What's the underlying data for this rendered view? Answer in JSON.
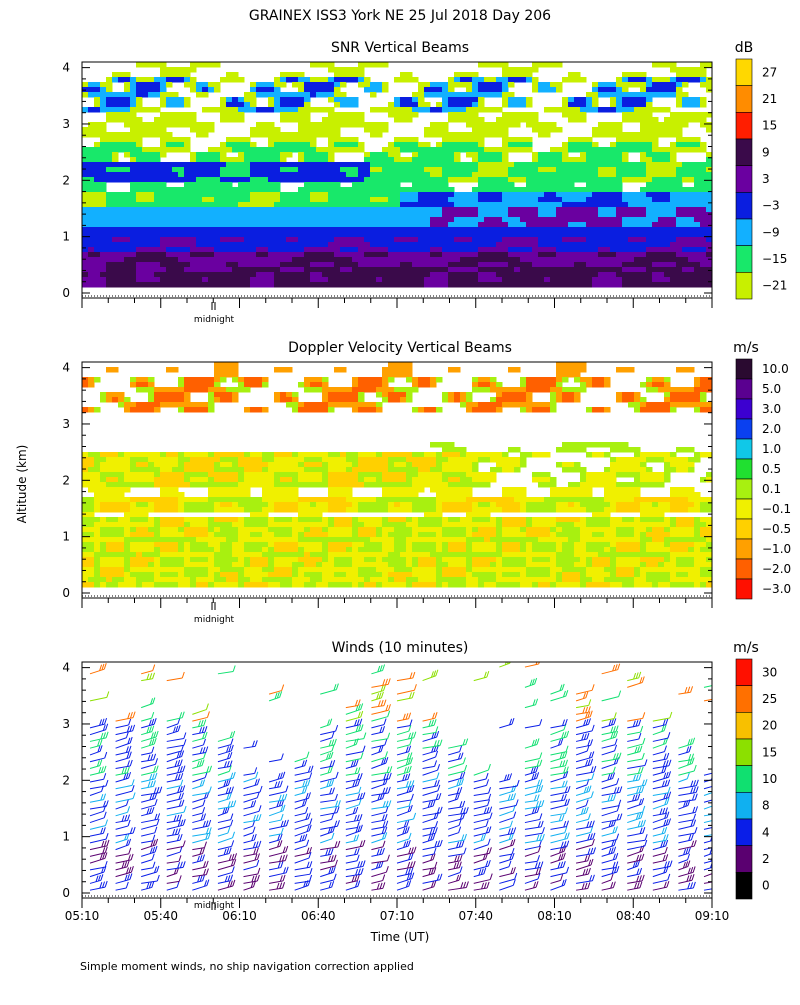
{
  "title": "GRAINEX ISS3 York NE  25 Jul 2018 Day 206",
  "ylabel": "Altitude (km)",
  "xlabel": "Time (UT)",
  "footnote": "Simple moment winds, no ship navigation correction applied",
  "midnight_label": "midnight",
  "chart_data": [
    {
      "type": "heatmap",
      "title": "SNR Vertical Beams",
      "unit": "dB",
      "ylim": [
        0,
        4
      ],
      "yticks": [
        "0",
        "1",
        "2",
        "3",
        "4"
      ],
      "colorbar": {
        "labels": [
          "27",
          "21",
          "15",
          "9",
          "3",
          "−3",
          "−9",
          "−15",
          "−21"
        ],
        "colors": [
          "#ffd800",
          "#ff8c00",
          "#ff1e00",
          "#3a0a4a",
          "#6a00a0",
          "#0a1ee0",
          "#12b0ff",
          "#18e86a",
          "#c8f000"
        ]
      }
    },
    {
      "type": "heatmap",
      "title": "Doppler Velocity Vertical Beams",
      "unit": "m/s",
      "ylim": [
        0,
        4
      ],
      "yticks": [
        "0",
        "1",
        "2",
        "3",
        "4"
      ],
      "colorbar": {
        "labels": [
          "10.0",
          "5.0",
          "3.0",
          "2.0",
          "1.0",
          "0.5",
          "0.1",
          "−0.1",
          "−0.5",
          "−1.0",
          "−2.0",
          "−3.0"
        ],
        "colors": [
          "#2a0a30",
          "#5a0090",
          "#3c00d0",
          "#0a40f0",
          "#10c8e8",
          "#20e030",
          "#a8f010",
          "#f0f000",
          "#ffd000",
          "#ffa000",
          "#ff6000",
          "#ff1000"
        ]
      }
    },
    {
      "type": "wind-barbs",
      "title": "Winds (10 minutes)",
      "unit": "m/s",
      "ylim": [
        0,
        4
      ],
      "yticks": [
        "0",
        "1",
        "2",
        "3",
        "4"
      ],
      "xticks": [
        "05:10",
        "05:40",
        "06:10",
        "06:40",
        "07:10",
        "07:40",
        "08:10",
        "08:40",
        "09:10"
      ],
      "colorbar": {
        "labels": [
          "30",
          "25",
          "20",
          "15",
          "10",
          "8",
          "4",
          "2",
          "0"
        ],
        "colors": [
          "#ff1000",
          "#ff7000",
          "#f8c000",
          "#8ce000",
          "#10e070",
          "#10b0f0",
          "#0a1ee8",
          "#5a0070",
          "#000000"
        ]
      }
    }
  ]
}
